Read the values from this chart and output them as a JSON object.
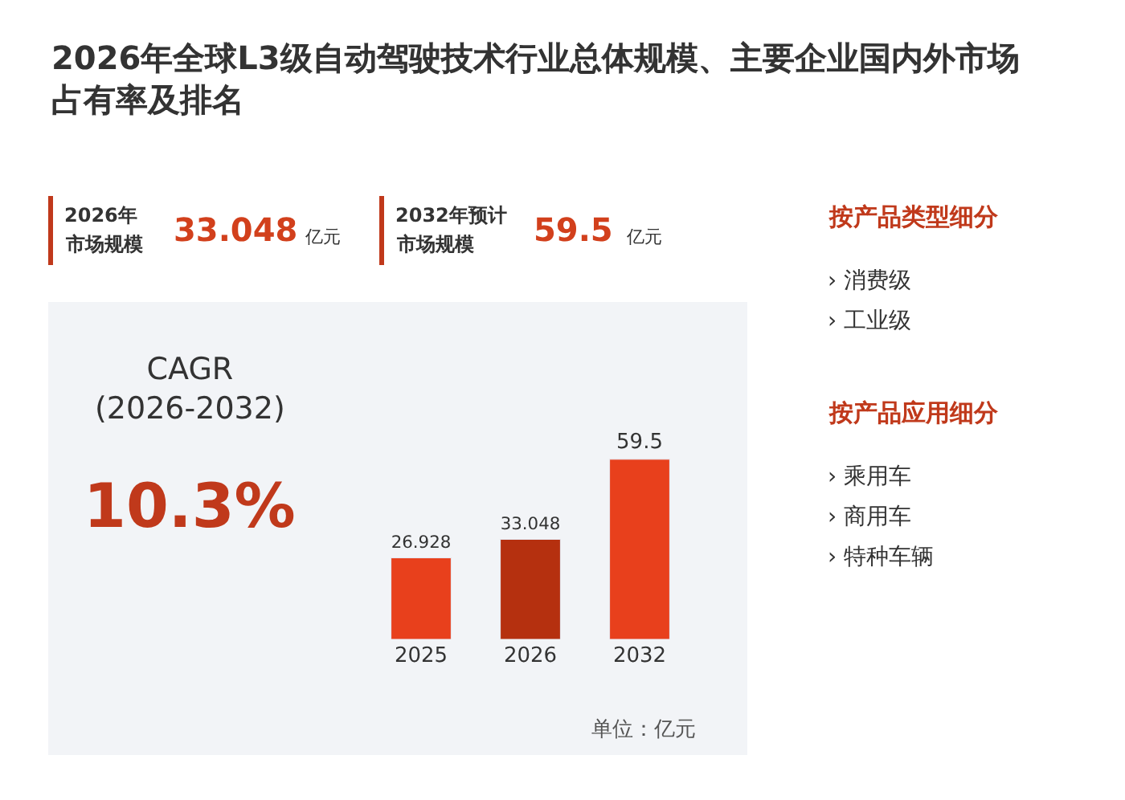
{
  "chart_data": {
    "type": "bar",
    "title": "2026年全球L3级自动驾驶技术行业总体规模、主要企业国内外市场占有率及排名",
    "categories": [
      "2025",
      "2026",
      "2032"
    ],
    "values": [
      26.928,
      33.048,
      59.5
    ],
    "colors": [
      "#e8401c",
      "#b5300f",
      "#e8401c"
    ],
    "data_labels": true,
    "annotations": [
      "2026年",
      "市场规模",
      "33.048",
      "亿元",
      "2032年预计",
      "市场规模",
      "59.5",
      "亿元",
      "CAGR\n(2026-2032)",
      "10.3%",
      "按产品类型细分",
      "› 消费级",
      "› 工业级",
      "按产品应用细分",
      "› 乘用车",
      "› 商用车",
      "› 特种车辆",
      "单位：亿元"
    ]
  }
}
